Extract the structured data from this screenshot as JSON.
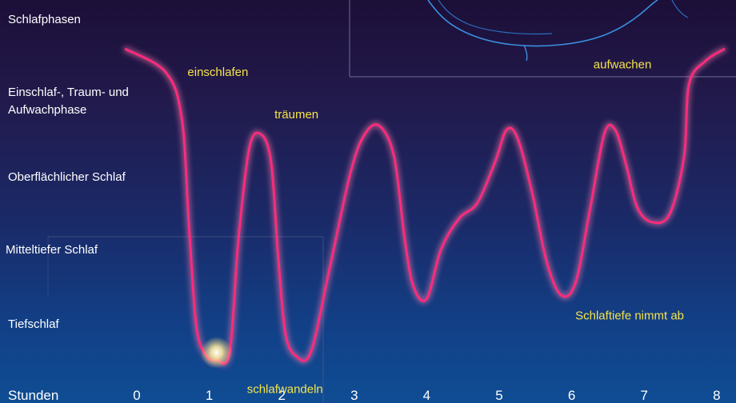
{
  "chart_data": {
    "type": "line",
    "title": "Schlafphasen",
    "xlabel": "Stunden",
    "x_ticks": [
      "0",
      "1",
      "2",
      "3",
      "4",
      "5",
      "6",
      "7",
      "8"
    ],
    "xlim": [
      0,
      8
    ],
    "y_levels": [
      "Einschlaf-, Traum- und Aufwachphase",
      "Oberflächlicher Schlaf",
      "Mitteltiefer Schlaf",
      "Tiefschlaf"
    ],
    "y_label_lines": [
      [
        "Einschlaf-, Traum- und",
        "Aufwachphase"
      ],
      [
        "Oberflächlicher Schlaf"
      ],
      [
        "Mitteltiefer Schlaf"
      ],
      [
        "Tiefschlaf"
      ]
    ],
    "ylim": [
      0.5,
      5
    ],
    "y_scale_note": "1 = Tiefschlaf, 4 = Einschlaf-, Traum- und Aufwachphase",
    "series": [
      {
        "color": "#ff2a7a",
        "points": [
          [
            -0.15,
            4.9
          ],
          [
            0.4,
            4.6
          ],
          [
            0.62,
            4.0
          ],
          [
            0.72,
            2.6
          ],
          [
            0.82,
            1.3
          ],
          [
            0.95,
            0.92
          ],
          [
            1.1,
            0.85
          ],
          [
            1.28,
            0.95
          ],
          [
            1.4,
            2.4
          ],
          [
            1.55,
            3.6
          ],
          [
            1.7,
            3.8
          ],
          [
            1.85,
            3.45
          ],
          [
            1.95,
            2.2
          ],
          [
            2.05,
            1.2
          ],
          [
            2.2,
            0.9
          ],
          [
            2.4,
            0.95
          ],
          [
            2.65,
            2.0
          ],
          [
            2.95,
            3.3
          ],
          [
            3.15,
            3.8
          ],
          [
            3.35,
            3.9
          ],
          [
            3.55,
            3.5
          ],
          [
            3.7,
            2.4
          ],
          [
            3.82,
            1.8
          ],
          [
            4.0,
            1.65
          ],
          [
            4.2,
            2.3
          ],
          [
            4.45,
            2.7
          ],
          [
            4.7,
            2.9
          ],
          [
            4.95,
            3.45
          ],
          [
            5.1,
            3.85
          ],
          [
            5.25,
            3.75
          ],
          [
            5.45,
            3.05
          ],
          [
            5.65,
            2.15
          ],
          [
            5.85,
            1.7
          ],
          [
            6.05,
            1.85
          ],
          [
            6.25,
            2.8
          ],
          [
            6.45,
            3.8
          ],
          [
            6.6,
            3.85
          ],
          [
            6.75,
            3.4
          ],
          [
            6.9,
            2.85
          ],
          [
            7.1,
            2.65
          ],
          [
            7.35,
            2.75
          ],
          [
            7.55,
            3.5
          ],
          [
            7.62,
            4.45
          ],
          [
            7.85,
            4.75
          ],
          [
            8.1,
            4.9
          ]
        ]
      }
    ],
    "annotations": [
      {
        "text": "einschlafen",
        "x": 0.7,
        "y": 4.55
      },
      {
        "text": "träumen",
        "x": 1.9,
        "y": 4.0
      },
      {
        "text": "schlafwandeln",
        "x": 1.52,
        "y": 0.42
      },
      {
        "text": "Schlaftiefe nimmt ab",
        "x": 6.05,
        "y": 1.38
      },
      {
        "text": "aufwachen",
        "x": 6.3,
        "y": 4.65
      }
    ],
    "grid": false,
    "legend": "none"
  },
  "colors": {
    "curve": "#ff2a7a",
    "curve_glow": "#ff7ab0",
    "annotation_text": "#f5e44a",
    "label_text": "#ffffff",
    "background_top": "#1c0f38",
    "background_bottom": "#0f4d94"
  },
  "decorations": {
    "sleeper_outline": "sleeper-face-outline",
    "deep_sleep_glow": "glow-icon"
  }
}
